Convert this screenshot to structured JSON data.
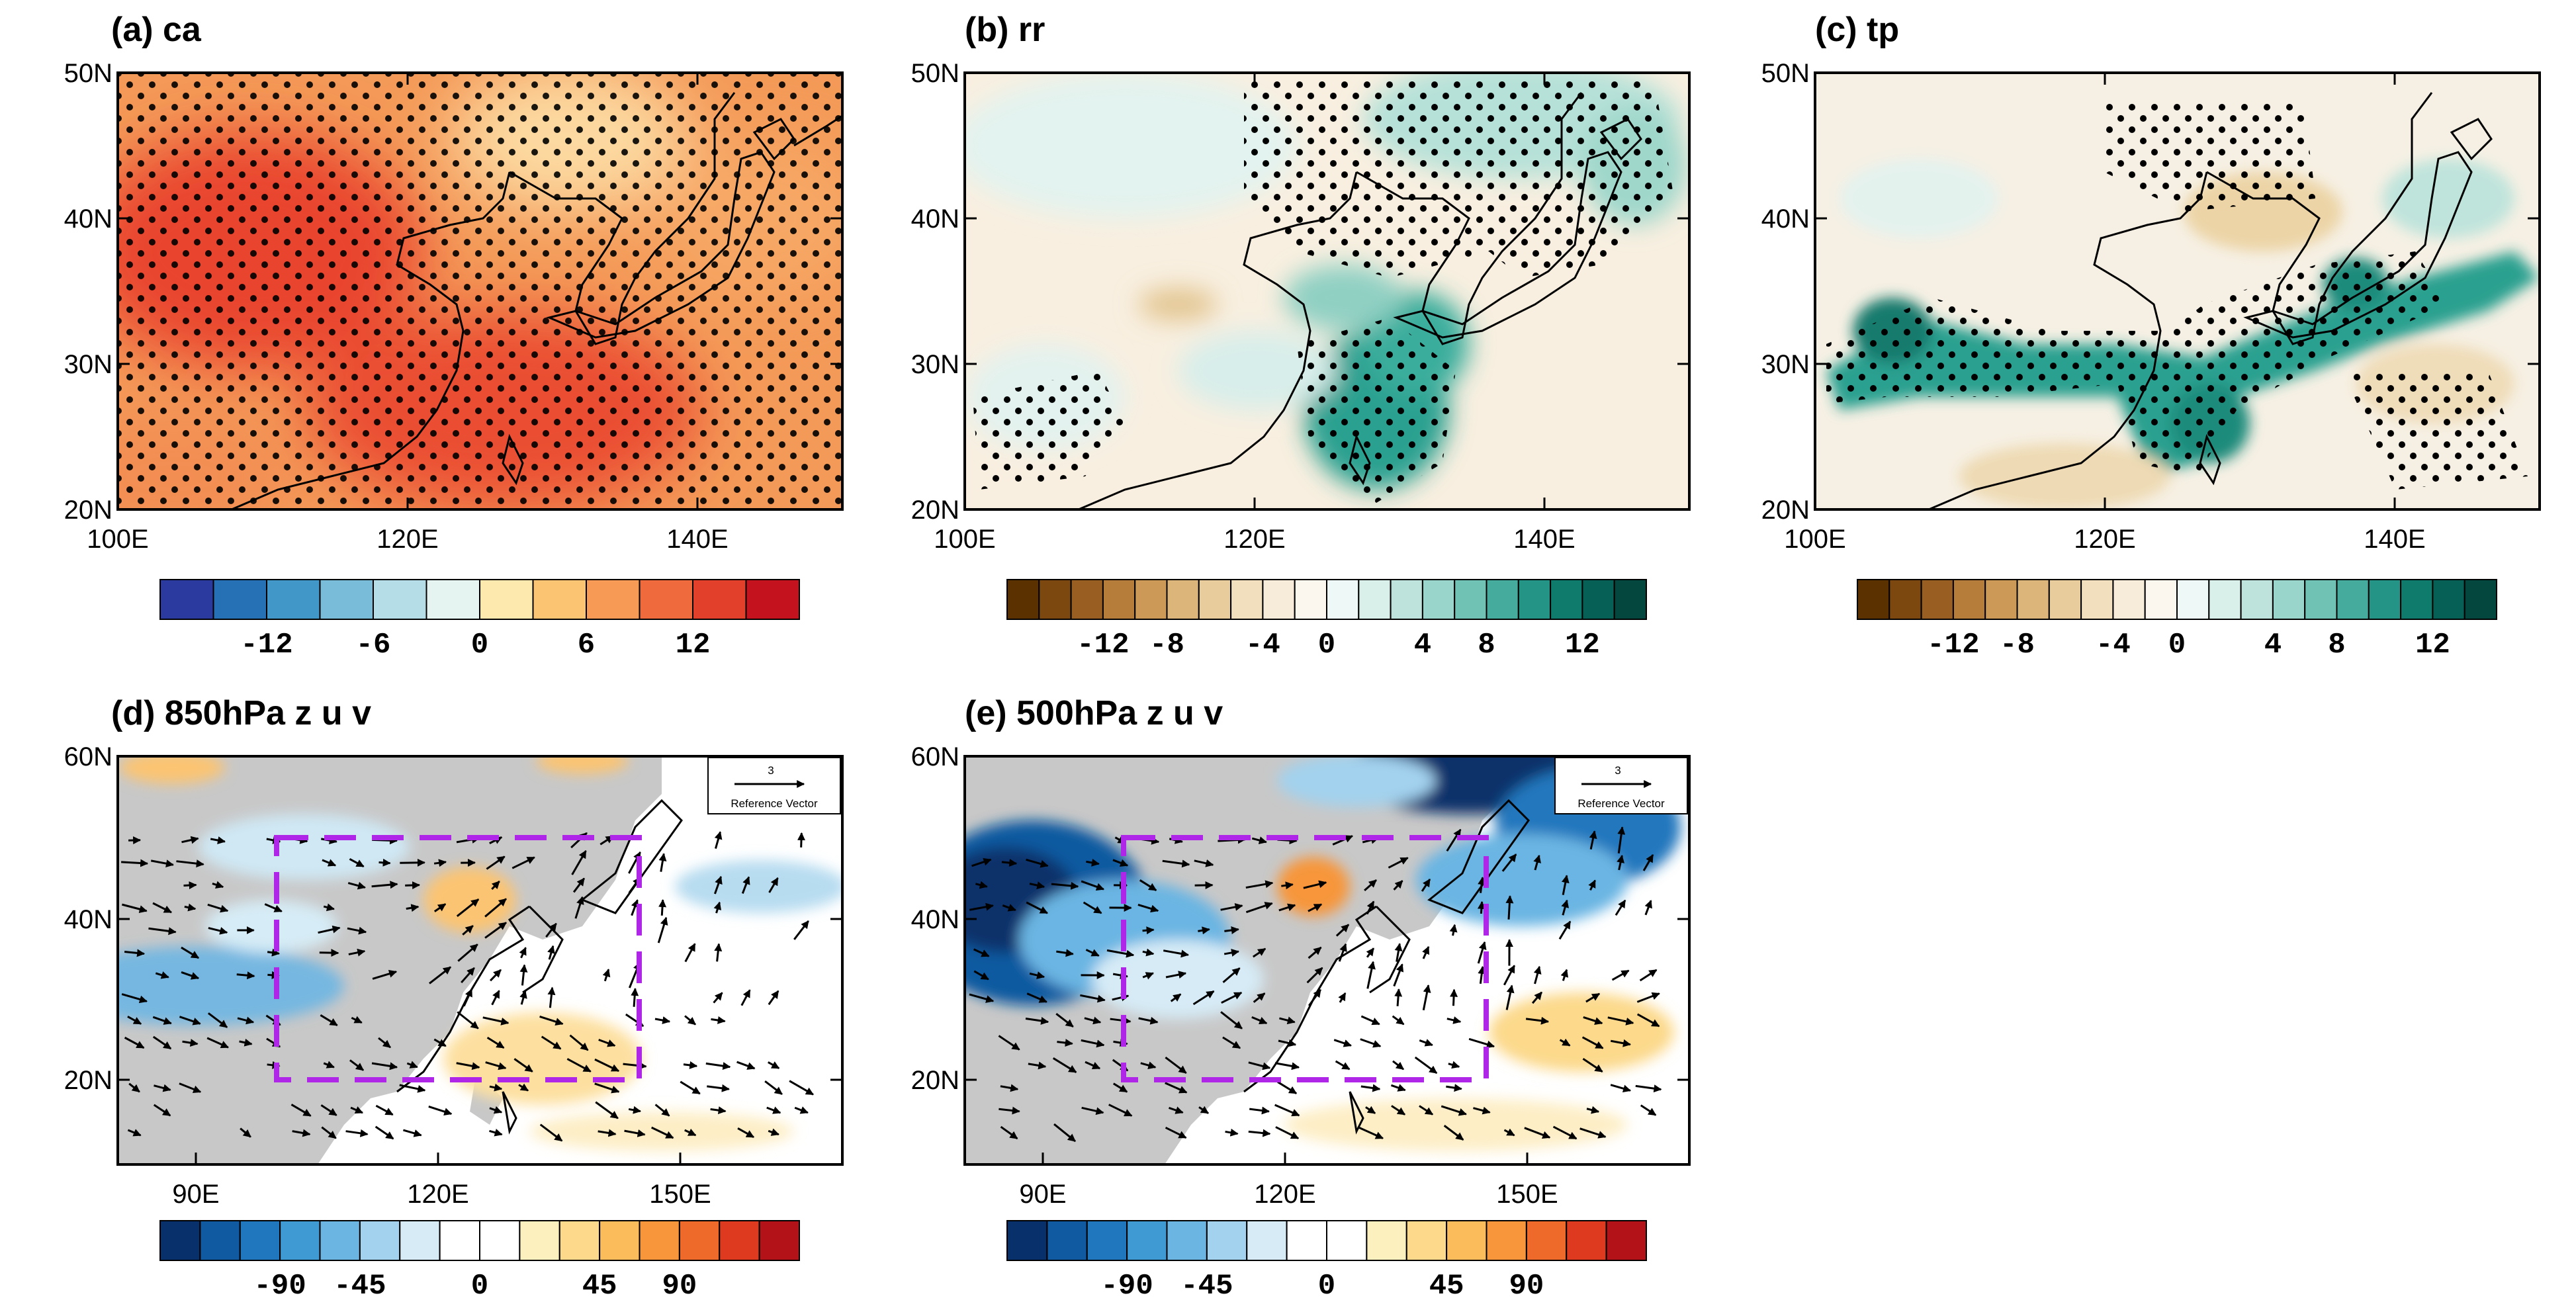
{
  "colors": {
    "frame": "#000000",
    "box": "#b026e8",
    "land": "#c8c8c8",
    "dots": "#000000"
  },
  "chart_data": [
    {
      "id": "a",
      "type": "heatmap",
      "title": "(a) ca",
      "x_ticks": [
        "100E",
        "120E",
        "140E"
      ],
      "y_ticks": [
        "50N",
        "40N",
        "30N",
        "20N"
      ],
      "xlim": [
        100,
        150
      ],
      "ylim": [
        20,
        50
      ],
      "colorbar": {
        "colors": [
          "#2b3a9e",
          "#2670b5",
          "#4297c9",
          "#78bcd9",
          "#b4dde8",
          "#e6f4f1",
          "#fde8ad",
          "#fbc472",
          "#f79a55",
          "#ef6a3d",
          "#e3402b",
          "#c4121e"
        ],
        "labels": [
          "-12",
          "-6",
          "0",
          "6",
          "12"
        ]
      },
      "stippling": "dense over whole domain"
    },
    {
      "id": "b",
      "type": "heatmap",
      "title": "(b) rr",
      "x_ticks": [
        "100E",
        "120E",
        "140E"
      ],
      "y_ticks": [
        "50N",
        "40N",
        "30N",
        "20N"
      ],
      "xlim": [
        100,
        150
      ],
      "ylim": [
        20,
        50
      ],
      "colorbar": {
        "colors": [
          "#5b3100",
          "#7d4710",
          "#995f22",
          "#b57c3a",
          "#cc9a56",
          "#dcb57a",
          "#e8cc9c",
          "#f1dfbd",
          "#f7ecd9",
          "#fbf6ee",
          "#eef8f6",
          "#d8efea",
          "#bde3dc",
          "#9ad5cb",
          "#70c2b5",
          "#45ab9c",
          "#239485",
          "#0f7b6d",
          "#076055",
          "#04473f"
        ],
        "labels": [
          "-12",
          "-8",
          "-4",
          "0",
          "4",
          "8",
          "12"
        ]
      },
      "stippling": "northern band and East China Sea"
    },
    {
      "id": "c",
      "type": "heatmap",
      "title": "(c) tp",
      "x_ticks": [
        "100E",
        "120E",
        "140E"
      ],
      "y_ticks": [
        "50N",
        "40N",
        "30N",
        "20N"
      ],
      "xlim": [
        100,
        150
      ],
      "ylim": [
        20,
        50
      ],
      "colorbar": {
        "colors": [
          "#5b3100",
          "#7d4710",
          "#995f22",
          "#b57c3a",
          "#cc9a56",
          "#dcb57a",
          "#e8cc9c",
          "#f1dfbd",
          "#f7ecd9",
          "#fbf6ee",
          "#eef8f6",
          "#d8efea",
          "#bde3dc",
          "#9ad5cb",
          "#70c2b5",
          "#45ab9c",
          "#239485",
          "#0f7b6d",
          "#076055",
          "#04473f"
        ],
        "labels": [
          "-12",
          "-8",
          "-4",
          "0",
          "4",
          "8",
          "12"
        ]
      },
      "stippling": "along 30N rain band"
    },
    {
      "id": "d",
      "type": "heatmap",
      "title": "(d) 850hPa z u v",
      "x_ticks": [
        "90E",
        "120E",
        "150E"
      ],
      "y_ticks": [
        "60N",
        "40N",
        "20N"
      ],
      "xlim": [
        80,
        170
      ],
      "ylim": [
        10,
        60
      ],
      "box": {
        "lon": [
          100,
          145
        ],
        "lat": [
          20,
          50
        ]
      },
      "reference_vector": {
        "value": "3",
        "label": "Reference Vector"
      },
      "colorbar": {
        "colors": [
          "#08306b",
          "#0f5aa0",
          "#2177bd",
          "#3f99d3",
          "#6bb5e3",
          "#a3d2ee",
          "#d6ebf6",
          "#ffffff",
          "#ffffff",
          "#fdf0bf",
          "#fcd98b",
          "#fbbc5c",
          "#f7963b",
          "#ee6a2a",
          "#de3a20",
          "#b31218"
        ],
        "labels": [
          "-90",
          "-45",
          "0",
          "45",
          "90"
        ]
      }
    },
    {
      "id": "e",
      "type": "heatmap",
      "title": "(e) 500hPa z u v",
      "x_ticks": [
        "90E",
        "120E",
        "150E"
      ],
      "y_ticks": [
        "60N",
        "40N",
        "20N"
      ],
      "xlim": [
        80,
        170
      ],
      "ylim": [
        10,
        60
      ],
      "box": {
        "lon": [
          100,
          145
        ],
        "lat": [
          20,
          50
        ]
      },
      "reference_vector": {
        "value": "3",
        "label": "Reference Vector"
      },
      "colorbar": {
        "colors": [
          "#08306b",
          "#0f5aa0",
          "#2177bd",
          "#3f99d3",
          "#6bb5e3",
          "#a3d2ee",
          "#d6ebf6",
          "#ffffff",
          "#ffffff",
          "#fdf0bf",
          "#fcd98b",
          "#fbbc5c",
          "#f7963b",
          "#ee6a2a",
          "#de3a20",
          "#b31218"
        ],
        "labels": [
          "-90",
          "-45",
          "0",
          "45",
          "90"
        ]
      }
    }
  ]
}
